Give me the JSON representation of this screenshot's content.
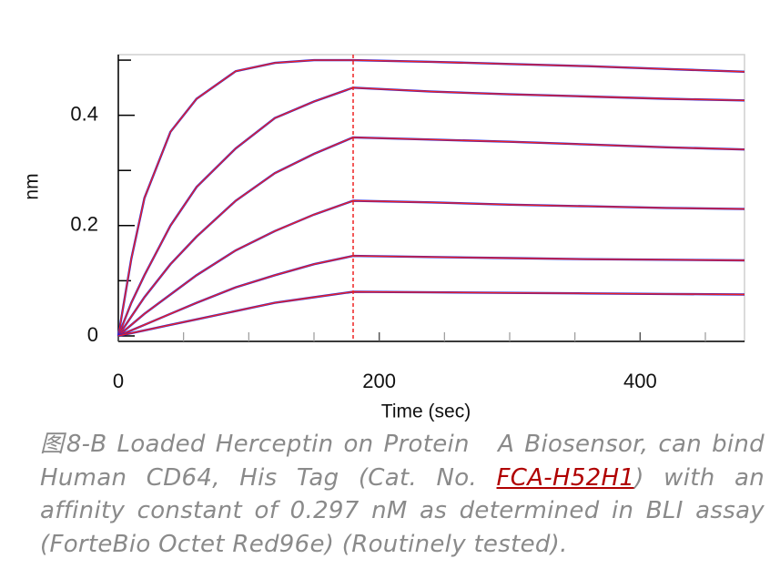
{
  "chart_data": {
    "type": "line",
    "x_label": "Time (sec)",
    "y_label": "nm",
    "x": [
      0,
      10,
      20,
      40,
      60,
      90,
      120,
      150,
      180,
      240,
      300,
      360,
      420,
      480
    ],
    "series": [
      {
        "color": "#2222dd",
        "fit_color": "#ee2222",
        "values": [
          0,
          0.14,
          0.25,
          0.37,
          0.43,
          0.48,
          0.495,
          0.5,
          0.5,
          0.497,
          0.493,
          0.489,
          0.484,
          0.479
        ]
      },
      {
        "color": "#2222dd",
        "fit_color": "#ee2222",
        "values": [
          0,
          0.06,
          0.11,
          0.2,
          0.27,
          0.34,
          0.395,
          0.425,
          0.45,
          0.443,
          0.438,
          0.434,
          0.43,
          0.427
        ]
      },
      {
        "color": "#2222dd",
        "fit_color": "#ee2222",
        "values": [
          0,
          0.035,
          0.07,
          0.13,
          0.18,
          0.245,
          0.295,
          0.33,
          0.36,
          0.356,
          0.352,
          0.347,
          0.342,
          0.338
        ]
      },
      {
        "color": "#2222dd",
        "fit_color": "#ee2222",
        "values": [
          0,
          0.02,
          0.04,
          0.075,
          0.11,
          0.155,
          0.19,
          0.22,
          0.245,
          0.242,
          0.238,
          0.235,
          0.232,
          0.23
        ]
      },
      {
        "color": "#2222dd",
        "fit_color": "#ee2222",
        "values": [
          0,
          0.01,
          0.02,
          0.04,
          0.06,
          0.088,
          0.11,
          0.13,
          0.145,
          0.143,
          0.141,
          0.139,
          0.138,
          0.137
        ]
      },
      {
        "color": "#2222dd",
        "fit_color": "#ee2222",
        "values": [
          0,
          0.005,
          0.01,
          0.02,
          0.03,
          0.045,
          0.06,
          0.07,
          0.08,
          0.079,
          0.078,
          0.077,
          0.076,
          0.075
        ]
      }
    ],
    "vline": 180,
    "vline_color": "#ee2222",
    "xlim": [
      0,
      480
    ],
    "xticks": [
      0,
      200,
      400
    ],
    "xminor_ticks": [
      50,
      100,
      150,
      250,
      300,
      350,
      450
    ],
    "ylim": [
      -0.01,
      0.51
    ],
    "yticks": [
      0,
      0.2,
      0.4
    ],
    "yminor_ticks": [
      0.1,
      0.3,
      0.5
    ]
  },
  "caption": {
    "before": "图8-B Loaded Herceptin on Protein　A Biosensor, can bind Human CD64, His Tag (Cat. No. ",
    "link": "FCA-H52H1",
    "after": ") with an　affinity constant of 0.297 nM as determined in BLI assay (ForteBio Octet Red96e) (Routinely tested)."
  }
}
